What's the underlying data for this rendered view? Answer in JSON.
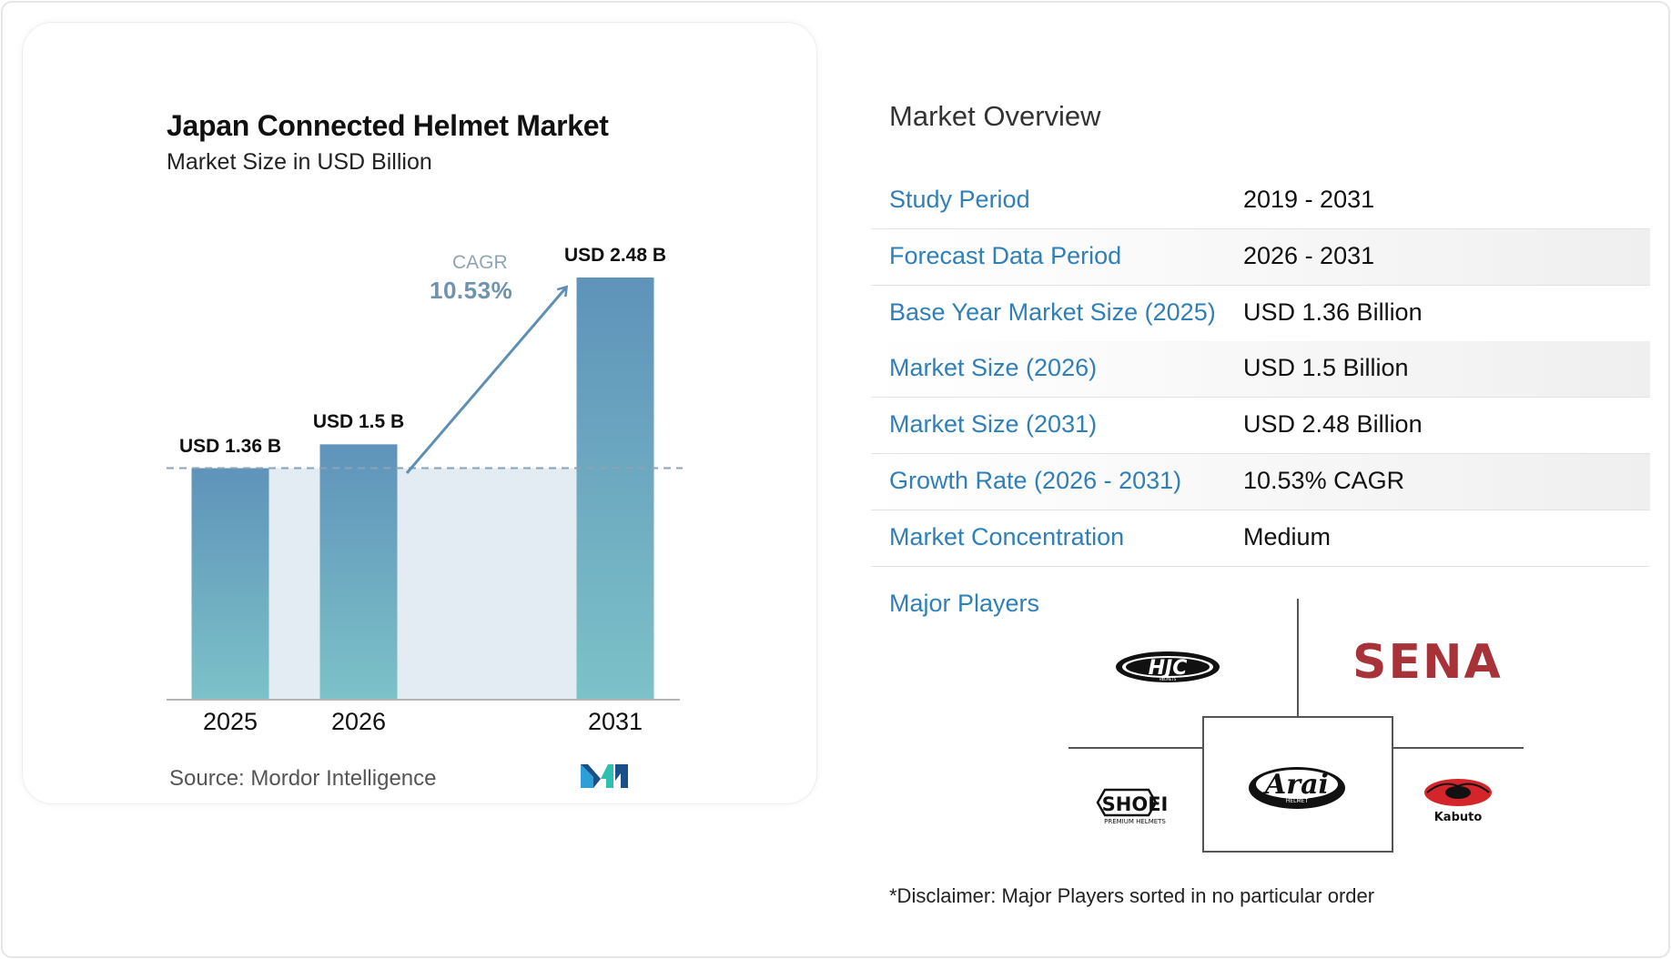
{
  "chart_data": {
    "type": "bar",
    "title": "Japan Connected Helmet Market",
    "subtitle": "Market Size in USD Billion",
    "categories": [
      "2025",
      "2026",
      "2031"
    ],
    "values": [
      1.36,
      1.5,
      2.48
    ],
    "value_labels": [
      "USD 1.36 B",
      "USD 1.5 B",
      "USD 2.48 B"
    ],
    "ylim": [
      0,
      2.48
    ],
    "grid": false,
    "reference_line": 1.36,
    "cagr_label": "CAGR",
    "cagr_value": "10.53%",
    "source": "Source: Mordor Intelligence"
  },
  "colors": {
    "bar_top": "#5f93ba",
    "bar_bottom": "#7cc2c8",
    "band": "#e3ecf3",
    "label_blue": "#2f7fb8",
    "arrow": "#5f8fb3",
    "sena": "#a73339"
  },
  "overview": {
    "title": "Market Overview",
    "rows": [
      {
        "label": "Study Period",
        "value": "2019 - 2031"
      },
      {
        "label": "Forecast Data Period",
        "value": "2026 - 2031"
      },
      {
        "label": "Base Year Market Size (2025)",
        "value": "USD 1.36 Billion"
      },
      {
        "label": "Market Size (2026)",
        "value": "USD 1.5 Billion"
      },
      {
        "label": "Market Size (2031)",
        "value": "USD 2.48 Billion"
      },
      {
        "label": "Growth Rate (2026 - 2031)",
        "value": "10.53% CAGR"
      },
      {
        "label": "Market Concentration",
        "value": "Medium"
      }
    ],
    "major_players_label": "Major Players",
    "players": [
      "HJC",
      "SENA",
      "SHOEI",
      "Arai",
      "Kabuto"
    ],
    "player_subtexts": {
      "hjc": "HELMETS",
      "shoei": "PREMIUM HELMETS",
      "arai": "HELMET"
    },
    "disclaimer": "*Disclaimer: Major Players sorted in no particular order"
  }
}
